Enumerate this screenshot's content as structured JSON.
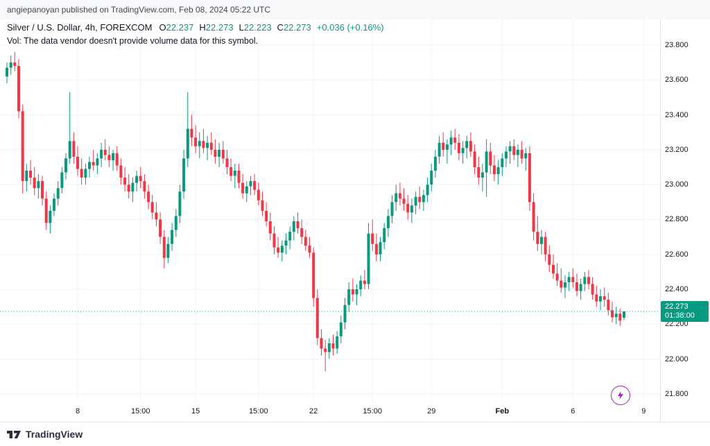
{
  "attribution": "angiepanoyan published on TradingView.com, Feb 08, 2024 05:22 UTC",
  "legend": {
    "title": "Silver / U.S. Dollar, 4h, FOREXCOM",
    "ohlc": {
      "o_label": "O",
      "o": "22.237",
      "h_label": "H",
      "h": "22.273",
      "l_label": "L",
      "l": "22.223",
      "c_label": "C",
      "c": "22.273",
      "change": "+0.036 (+0.16%)"
    },
    "volume_note": "Vol: The data vendor doesn't provide volume data for this symbol."
  },
  "last_price_label": {
    "price": "22.273",
    "countdown": "01:38:00"
  },
  "footer": {
    "logo_text": "TradingView"
  },
  "chart_data": {
    "type": "candlestick",
    "title": "Silver / U.S. Dollar, 4h, FOREXCOM",
    "symbol": "Silver / U.S. Dollar",
    "interval": "4h",
    "exchange": "FOREXCOM",
    "ohlc_current": {
      "open": 22.237,
      "high": 22.273,
      "low": 22.223,
      "close": 22.273,
      "change": 0.036,
      "change_pct": 0.16
    },
    "last_price": 22.273,
    "countdown": "01:38:00",
    "colors": {
      "up": "#089981",
      "down": "#f23645",
      "grid": "#f0f3fa",
      "price_line": "#089981"
    },
    "y_axis": {
      "min": 21.752,
      "max": 23.947,
      "ticks": [
        23.8,
        23.6,
        23.4,
        23.2,
        23.0,
        22.8,
        22.6,
        22.4,
        22.2,
        22.0,
        21.8
      ]
    },
    "x_axis": {
      "labels": [
        {
          "text": "8",
          "index": 18
        },
        {
          "text": "15:00",
          "index": 34
        },
        {
          "text": "15",
          "index": 48
        },
        {
          "text": "15:00",
          "index": 64
        },
        {
          "text": "22",
          "index": 78
        },
        {
          "text": "15:00",
          "index": 93
        },
        {
          "text": "29",
          "index": 108
        },
        {
          "text": "Feb",
          "index": 126,
          "major": true
        },
        {
          "text": "6",
          "index": 144
        },
        {
          "text": "9",
          "index": 162
        }
      ]
    },
    "candles": [
      [
        23.62,
        23.7,
        23.58,
        23.67
      ],
      [
        23.67,
        23.74,
        23.63,
        23.7
      ],
      [
        23.7,
        23.76,
        23.65,
        23.68
      ],
      [
        23.68,
        23.72,
        23.38,
        23.42
      ],
      [
        23.42,
        23.46,
        22.95,
        23.02
      ],
      [
        23.02,
        23.12,
        22.96,
        23.08
      ],
      [
        23.08,
        23.14,
        23.0,
        23.04
      ],
      [
        23.04,
        23.1,
        22.94,
        22.98
      ],
      [
        22.98,
        23.06,
        22.92,
        23.02
      ],
      [
        23.02,
        23.05,
        22.88,
        22.92
      ],
      [
        22.92,
        22.96,
        22.74,
        22.78
      ],
      [
        22.78,
        22.88,
        22.72,
        22.85
      ],
      [
        22.85,
        22.95,
        22.82,
        22.92
      ],
      [
        22.92,
        23.02,
        22.88,
        22.98
      ],
      [
        22.98,
        23.1,
        22.95,
        23.07
      ],
      [
        23.07,
        23.18,
        23.03,
        23.15
      ],
      [
        23.15,
        23.53,
        23.12,
        23.25
      ],
      [
        23.25,
        23.3,
        23.12,
        23.16
      ],
      [
        23.16,
        23.22,
        23.05,
        23.09
      ],
      [
        23.09,
        23.15,
        23.0,
        23.04
      ],
      [
        23.04,
        23.12,
        23.0,
        23.09
      ],
      [
        23.09,
        23.16,
        23.04,
        23.13
      ],
      [
        23.13,
        23.2,
        23.08,
        23.11
      ],
      [
        23.11,
        23.18,
        23.06,
        23.15
      ],
      [
        23.15,
        23.24,
        23.1,
        23.2
      ],
      [
        23.2,
        23.26,
        23.14,
        23.17
      ],
      [
        23.17,
        23.22,
        23.1,
        23.14
      ],
      [
        23.14,
        23.2,
        23.08,
        23.18
      ],
      [
        23.18,
        23.22,
        23.08,
        23.11
      ],
      [
        23.11,
        23.15,
        23.0,
        23.04
      ],
      [
        23.04,
        23.1,
        22.96,
        23.0
      ],
      [
        23.0,
        23.06,
        22.92,
        22.96
      ],
      [
        22.96,
        23.04,
        22.9,
        23.01
      ],
      [
        23.01,
        23.08,
        22.96,
        23.05
      ],
      [
        23.05,
        23.1,
        22.98,
        23.02
      ],
      [
        23.02,
        23.06,
        22.92,
        22.96
      ],
      [
        22.96,
        23.0,
        22.86,
        22.9
      ],
      [
        22.9,
        22.94,
        22.8,
        22.84
      ],
      [
        22.84,
        22.9,
        22.76,
        22.8
      ],
      [
        22.8,
        22.84,
        22.66,
        22.7
      ],
      [
        22.7,
        22.74,
        22.52,
        22.58
      ],
      [
        22.58,
        22.7,
        22.55,
        22.66
      ],
      [
        22.66,
        22.78,
        22.62,
        22.74
      ],
      [
        22.74,
        22.86,
        22.7,
        22.82
      ],
      [
        22.82,
        23.0,
        22.78,
        22.96
      ],
      [
        22.96,
        23.2,
        22.92,
        23.15
      ],
      [
        23.15,
        23.53,
        23.1,
        23.32
      ],
      [
        23.32,
        23.4,
        23.22,
        23.27
      ],
      [
        23.27,
        23.34,
        23.18,
        23.22
      ],
      [
        23.22,
        23.3,
        23.15,
        23.25
      ],
      [
        23.25,
        23.32,
        23.18,
        23.21
      ],
      [
        23.21,
        23.28,
        23.14,
        23.24
      ],
      [
        23.24,
        23.3,
        23.17,
        23.2
      ],
      [
        23.2,
        23.26,
        23.12,
        23.16
      ],
      [
        23.16,
        23.24,
        23.1,
        23.2
      ],
      [
        23.2,
        23.25,
        23.12,
        23.15
      ],
      [
        23.15,
        23.2,
        23.06,
        23.1
      ],
      [
        23.1,
        23.15,
        23.02,
        23.05
      ],
      [
        23.05,
        23.12,
        22.98,
        23.08
      ],
      [
        23.08,
        23.12,
        22.98,
        23.01
      ],
      [
        23.01,
        23.06,
        22.92,
        22.95
      ],
      [
        22.95,
        23.02,
        22.9,
        22.99
      ],
      [
        22.99,
        23.05,
        22.94,
        23.02
      ],
      [
        23.02,
        23.06,
        22.94,
        22.97
      ],
      [
        22.97,
        23.01,
        22.88,
        22.91
      ],
      [
        22.91,
        22.96,
        22.82,
        22.85
      ],
      [
        22.85,
        22.9,
        22.76,
        22.79
      ],
      [
        22.79,
        22.84,
        22.68,
        22.72
      ],
      [
        22.72,
        22.76,
        22.6,
        22.64
      ],
      [
        22.64,
        22.7,
        22.58,
        22.61
      ],
      [
        22.61,
        22.68,
        22.56,
        22.65
      ],
      [
        22.65,
        22.72,
        22.6,
        22.68
      ],
      [
        22.68,
        22.76,
        22.63,
        22.73
      ],
      [
        22.73,
        22.82,
        22.68,
        22.79
      ],
      [
        22.79,
        22.84,
        22.72,
        22.75
      ],
      [
        22.75,
        22.8,
        22.66,
        22.7
      ],
      [
        22.7,
        22.74,
        22.62,
        22.65
      ],
      [
        22.65,
        22.7,
        22.58,
        22.61
      ],
      [
        22.61,
        22.64,
        22.3,
        22.35
      ],
      [
        22.35,
        22.4,
        22.08,
        22.12
      ],
      [
        22.12,
        22.17,
        22.02,
        22.06
      ],
      [
        22.06,
        22.11,
        21.93,
        22.04
      ],
      [
        22.04,
        22.12,
        22.0,
        22.09
      ],
      [
        22.09,
        22.14,
        22.02,
        22.06
      ],
      [
        22.06,
        22.16,
        22.03,
        22.13
      ],
      [
        22.13,
        22.25,
        22.09,
        22.21
      ],
      [
        22.21,
        22.35,
        22.17,
        22.31
      ],
      [
        22.31,
        22.44,
        22.27,
        22.4
      ],
      [
        22.4,
        22.46,
        22.33,
        22.37
      ],
      [
        22.37,
        22.43,
        22.31,
        22.4
      ],
      [
        22.4,
        22.48,
        22.36,
        22.45
      ],
      [
        22.45,
        22.51,
        22.4,
        22.43
      ],
      [
        22.43,
        22.78,
        22.4,
        22.72
      ],
      [
        22.72,
        22.8,
        22.62,
        22.66
      ],
      [
        22.66,
        22.72,
        22.56,
        22.6
      ],
      [
        22.6,
        22.7,
        22.56,
        22.67
      ],
      [
        22.67,
        22.78,
        22.63,
        22.75
      ],
      [
        22.75,
        22.86,
        22.7,
        22.82
      ],
      [
        22.82,
        22.94,
        22.78,
        22.9
      ],
      [
        22.9,
        23.0,
        22.85,
        22.95
      ],
      [
        22.95,
        23.01,
        22.88,
        22.92
      ],
      [
        22.92,
        22.98,
        22.85,
        22.89
      ],
      [
        22.89,
        22.94,
        22.8,
        22.84
      ],
      [
        22.84,
        22.92,
        22.78,
        22.88
      ],
      [
        22.88,
        22.96,
        22.83,
        22.93
      ],
      [
        22.93,
        22.99,
        22.86,
        22.9
      ],
      [
        22.9,
        22.97,
        22.85,
        22.94
      ],
      [
        22.94,
        23.04,
        22.9,
        23.0
      ],
      [
        23.0,
        23.12,
        22.96,
        23.08
      ],
      [
        23.08,
        23.2,
        23.04,
        23.16
      ],
      [
        23.16,
        23.28,
        23.12,
        23.24
      ],
      [
        23.24,
        23.3,
        23.16,
        23.2
      ],
      [
        23.2,
        23.26,
        23.12,
        23.23
      ],
      [
        23.23,
        23.31,
        23.17,
        23.27
      ],
      [
        23.27,
        23.32,
        23.2,
        23.24
      ],
      [
        23.24,
        23.29,
        23.14,
        23.18
      ],
      [
        23.18,
        23.25,
        23.12,
        23.21
      ],
      [
        23.21,
        23.28,
        23.15,
        23.25
      ],
      [
        23.25,
        23.3,
        23.16,
        23.19
      ],
      [
        23.19,
        23.23,
        23.06,
        23.1
      ],
      [
        23.1,
        23.16,
        23.0,
        23.04
      ],
      [
        23.04,
        23.12,
        22.96,
        23.07
      ],
      [
        23.07,
        23.26,
        22.93,
        23.19
      ],
      [
        23.19,
        23.24,
        23.06,
        23.11
      ],
      [
        23.11,
        23.17,
        23.02,
        23.06
      ],
      [
        23.06,
        23.14,
        23.0,
        23.1
      ],
      [
        23.1,
        23.18,
        23.05,
        23.15
      ],
      [
        23.15,
        23.22,
        23.1,
        23.19
      ],
      [
        23.19,
        23.25,
        23.12,
        23.22
      ],
      [
        23.22,
        23.26,
        23.14,
        23.17
      ],
      [
        23.17,
        23.23,
        23.1,
        23.2
      ],
      [
        23.2,
        23.25,
        23.12,
        23.15
      ],
      [
        23.15,
        23.21,
        23.08,
        23.18
      ],
      [
        23.18,
        23.22,
        22.85,
        22.9
      ],
      [
        22.9,
        22.95,
        22.68,
        22.73
      ],
      [
        22.73,
        22.82,
        22.62,
        22.66
      ],
      [
        22.66,
        22.74,
        22.6,
        22.7
      ],
      [
        22.7,
        22.73,
        22.56,
        22.6
      ],
      [
        22.6,
        22.65,
        22.5,
        22.54
      ],
      [
        22.54,
        22.6,
        22.46,
        22.49
      ],
      [
        22.49,
        22.55,
        22.42,
        22.45
      ],
      [
        22.45,
        22.52,
        22.38,
        22.41
      ],
      [
        22.41,
        22.48,
        22.35,
        22.44
      ],
      [
        22.44,
        22.5,
        22.39,
        22.47
      ],
      [
        22.47,
        22.52,
        22.41,
        22.44
      ],
      [
        22.44,
        22.49,
        22.36,
        22.39
      ],
      [
        22.39,
        22.46,
        22.34,
        22.43
      ],
      [
        22.43,
        22.5,
        22.39,
        22.47
      ],
      [
        22.47,
        22.51,
        22.4,
        22.43
      ],
      [
        22.43,
        22.47,
        22.34,
        22.37
      ],
      [
        22.37,
        22.42,
        22.3,
        22.33
      ],
      [
        22.33,
        22.4,
        22.28,
        22.36
      ],
      [
        22.36,
        22.41,
        22.3,
        22.34
      ],
      [
        22.34,
        22.38,
        22.25,
        22.28
      ],
      [
        22.28,
        22.33,
        22.21,
        22.24
      ],
      [
        22.24,
        22.3,
        22.2,
        22.26
      ],
      [
        22.26,
        22.29,
        22.19,
        22.22
      ],
      [
        22.237,
        22.273,
        22.223,
        22.273
      ]
    ]
  }
}
